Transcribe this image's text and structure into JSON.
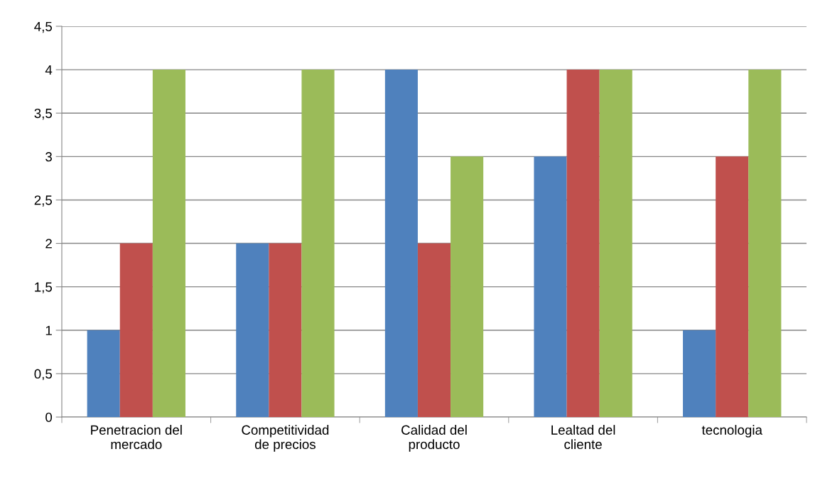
{
  "chart_data": {
    "type": "bar",
    "categories": [
      "Penetracion del mercado",
      "Competitividad de precios",
      "Calidad del producto",
      "Lealtad del cliente",
      "tecnologia"
    ],
    "series": [
      {
        "color": "#4f81bd",
        "values": [
          1,
          2,
          4,
          3,
          1
        ]
      },
      {
        "color": "#c0504d",
        "values": [
          2,
          2,
          2,
          4,
          3
        ]
      },
      {
        "color": "#9bbb59",
        "values": [
          4,
          4,
          3,
          4,
          4
        ]
      }
    ],
    "ylim": [
      0,
      4.5
    ],
    "yticks": [
      0,
      {
        "value": 0.5,
        "label": "0,5"
      },
      1,
      {
        "value": 1.5,
        "label": "1,5"
      },
      2,
      {
        "value": 2.5,
        "label": "2,5"
      },
      3,
      {
        "value": 3.5,
        "label": "3,5"
      },
      4,
      {
        "value": 4.5,
        "label": "4,5"
      }
    ],
    "grid": "y"
  }
}
